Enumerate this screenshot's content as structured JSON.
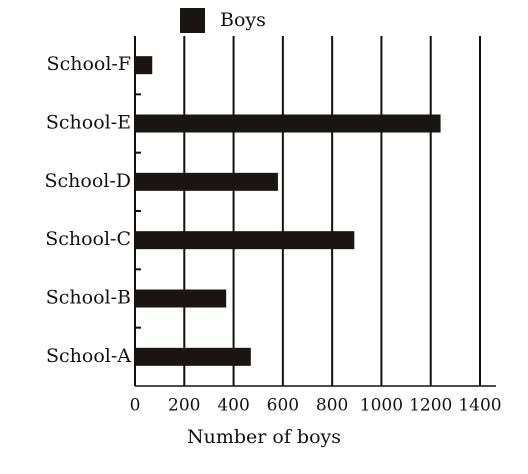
{
  "chart_data": {
    "type": "bar",
    "orientation": "horizontal",
    "categories": [
      "School-A",
      "School-B",
      "School-C",
      "School-D",
      "School-E",
      "School-F"
    ],
    "series": [
      {
        "name": "Boys",
        "color": "#1a1412",
        "values": [
          470,
          370,
          890,
          580,
          1240,
          70
        ]
      }
    ],
    "xlabel": "Number of boys",
    "xlim": [
      0,
      1400
    ],
    "xticks": [
      0,
      200,
      400,
      600,
      800,
      1000,
      1200,
      1400
    ],
    "grid": true,
    "legend": "top"
  }
}
